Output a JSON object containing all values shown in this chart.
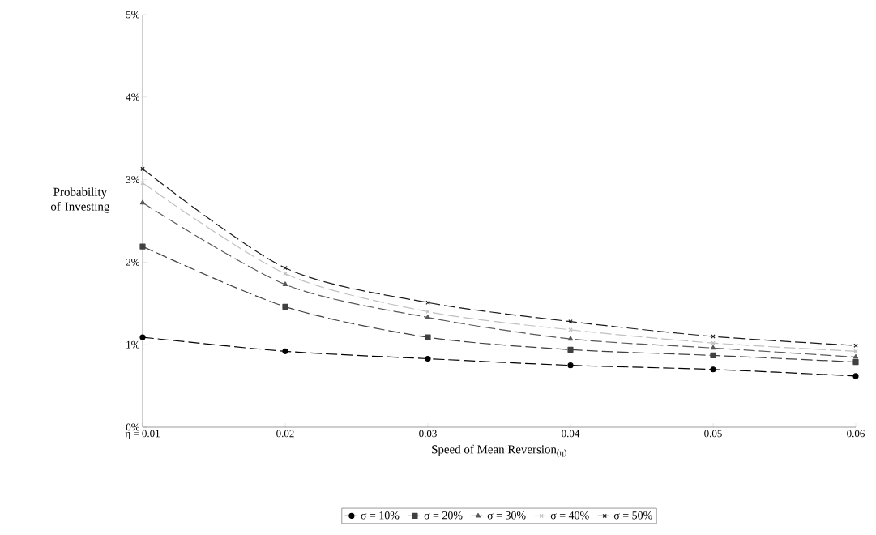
{
  "chart_data": {
    "type": "line",
    "xlabel": "Speed of Mean Reversion$_{(η)}$",
    "ylabel": "Probability of Investing",
    "x": [
      0.01,
      0.02,
      0.03,
      0.04,
      0.05,
      0.06
    ],
    "xlim": [
      0.01,
      0.06
    ],
    "xticks": [
      {
        "value": 0.01,
        "label": "η = 0.01"
      },
      {
        "value": 0.02,
        "label": "0.02"
      },
      {
        "value": 0.03,
        "label": "0.03"
      },
      {
        "value": 0.04,
        "label": "0.04"
      },
      {
        "value": 0.05,
        "label": "0.05"
      },
      {
        "value": 0.06,
        "label": "0.06"
      }
    ],
    "ylim": [
      0,
      5
    ],
    "yticks": [
      {
        "value": 0,
        "label": "0%"
      },
      {
        "value": 1,
        "label": "1%"
      },
      {
        "value": 2,
        "label": "2%"
      },
      {
        "value": 3,
        "label": "3%"
      },
      {
        "value": 4,
        "label": "4%"
      },
      {
        "value": 5,
        "label": "5%"
      }
    ],
    "grid": false,
    "legend": "bottom",
    "line_style": "dashed",
    "series": [
      {
        "name": "σ = 10%",
        "color": "#000000",
        "marker": "circle",
        "values": [
          1.09,
          0.92,
          0.83,
          0.75,
          0.7,
          0.62
        ]
      },
      {
        "name": "σ = 20%",
        "color": "#404040",
        "marker": "square",
        "values": [
          2.19,
          1.46,
          1.09,
          0.94,
          0.87,
          0.79
        ]
      },
      {
        "name": "σ = 30%",
        "color": "#595959",
        "marker": "triangle",
        "values": [
          2.72,
          1.73,
          1.33,
          1.07,
          0.96,
          0.85
        ]
      },
      {
        "name": "σ = 40%",
        "color": "#c0c0c0",
        "marker": "cross",
        "values": [
          2.96,
          1.86,
          1.4,
          1.18,
          1.02,
          0.92
        ]
      },
      {
        "name": "σ = 50%",
        "color": "#1a1a1a",
        "marker": "cross",
        "values": [
          3.13,
          1.93,
          1.51,
          1.28,
          1.1,
          0.99
        ]
      }
    ]
  }
}
